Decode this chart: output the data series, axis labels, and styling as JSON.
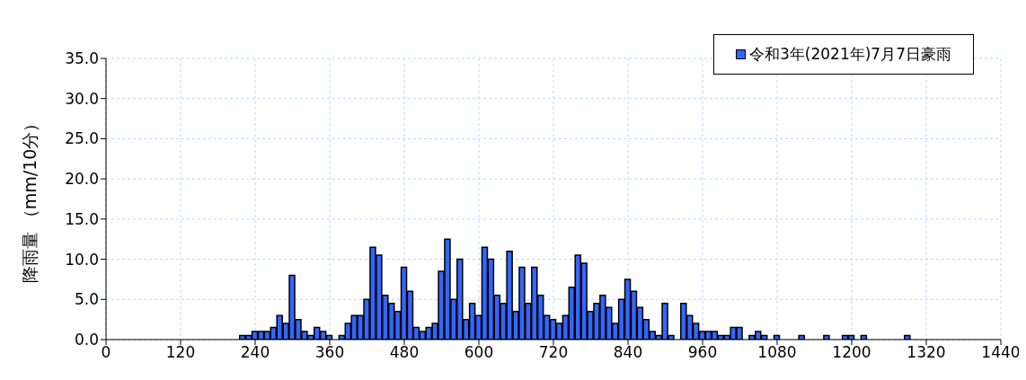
{
  "chart_data": {
    "type": "bar",
    "ylabel": "降雨量 （mm/10分）",
    "x": [
      220,
      230,
      240,
      250,
      260,
      270,
      280,
      290,
      300,
      310,
      320,
      330,
      340,
      350,
      360,
      380,
      390,
      400,
      410,
      420,
      430,
      440,
      450,
      460,
      470,
      480,
      490,
      500,
      510,
      520,
      530,
      540,
      550,
      560,
      570,
      580,
      590,
      600,
      610,
      620,
      630,
      640,
      650,
      660,
      670,
      680,
      690,
      700,
      710,
      720,
      730,
      740,
      750,
      760,
      770,
      780,
      790,
      800,
      810,
      820,
      830,
      840,
      850,
      860,
      870,
      880,
      890,
      900,
      910,
      930,
      940,
      950,
      960,
      970,
      980,
      990,
      1000,
      1010,
      1020,
      1040,
      1050,
      1060,
      1080,
      1120,
      1160,
      1190,
      1200,
      1220,
      1290
    ],
    "series": [
      {
        "name": "令和3年(2021年)7月7日豪雨",
        "color": "#3366ff",
        "values": [
          0.5,
          0.5,
          1.0,
          1.0,
          1.0,
          1.5,
          3.0,
          2.0,
          8.0,
          2.5,
          1.0,
          0.5,
          1.5,
          1.0,
          0.5,
          0.5,
          2.0,
          3.0,
          3.0,
          5.0,
          11.5,
          10.5,
          5.5,
          4.5,
          3.5,
          9.0,
          6.0,
          1.5,
          1.0,
          1.5,
          2.0,
          8.5,
          12.5,
          5.0,
          10.0,
          2.5,
          4.5,
          3.0,
          11.5,
          10.0,
          5.5,
          4.5,
          11.0,
          3.5,
          9.0,
          4.5,
          9.0,
          5.5,
          3.0,
          2.5,
          2.0,
          3.0,
          6.5,
          10.5,
          9.5,
          3.5,
          4.5,
          5.5,
          4.0,
          2.0,
          5.0,
          7.5,
          6.0,
          4.0,
          2.5,
          1.0,
          0.5,
          4.5,
          0.5,
          4.5,
          3.0,
          2.0,
          1.0,
          1.0,
          1.0,
          0.5,
          0.5,
          1.5,
          1.5,
          0.5,
          1.0,
          0.5,
          0.5,
          0.5,
          0.5,
          0.5,
          0.5,
          0.5,
          0.5
        ]
      }
    ],
    "xlim": [
      0,
      1440
    ],
    "xticks": [
      0,
      120,
      240,
      360,
      480,
      600,
      720,
      840,
      960,
      1080,
      1200,
      1320,
      1440
    ],
    "ylim": [
      0,
      35
    ],
    "yticks": [
      {
        "value": 0,
        "label": "0.0"
      },
      {
        "value": 5,
        "label": "5.0"
      },
      {
        "value": 10,
        "label": "10.0"
      },
      {
        "value": 15,
        "label": "15.0"
      },
      {
        "value": 20,
        "label": "20.0"
      },
      {
        "value": 25,
        "label": "25.0"
      },
      {
        "value": 30,
        "label": "30.0"
      },
      {
        "value": 35,
        "label": "35.0"
      }
    ],
    "grid": true,
    "legend": "top right"
  }
}
